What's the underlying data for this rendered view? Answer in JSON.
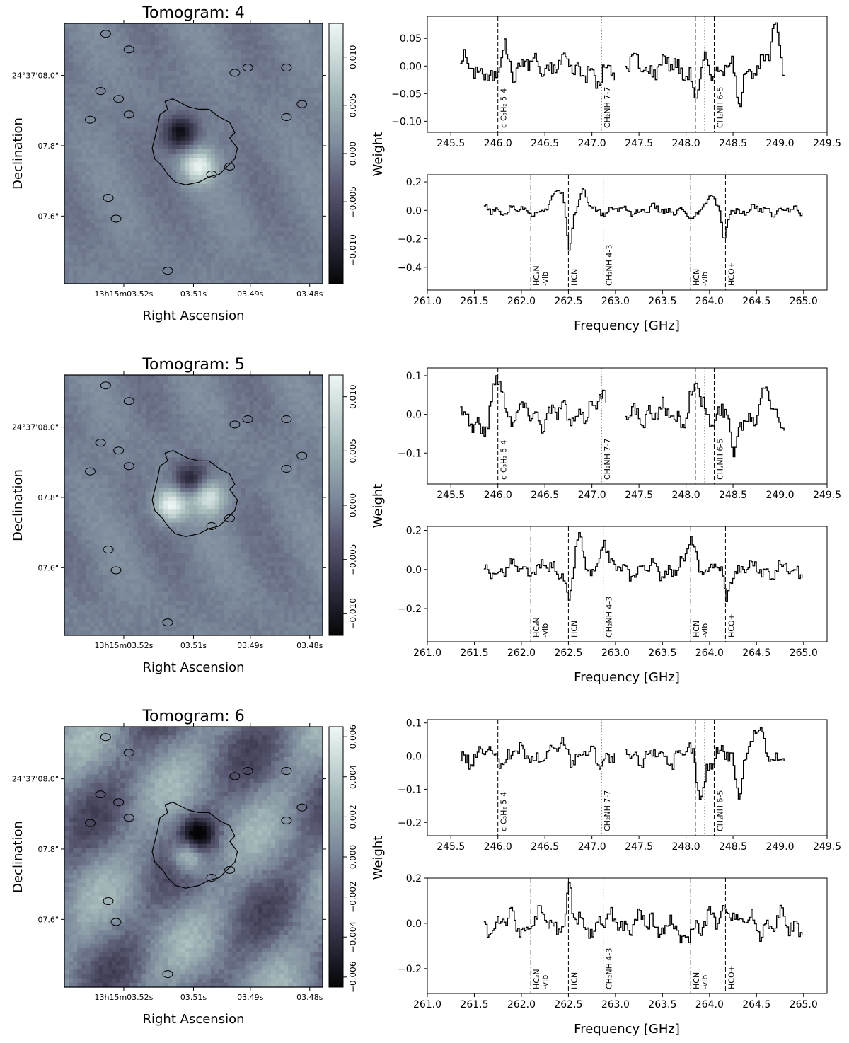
{
  "figure": {
    "ylabel_spectra": "Weight",
    "xlabel_spectra": "Frequency [GHz]",
    "xlabel_map": "Right Ascension",
    "ylabel_map": "Declination",
    "ra_ticks": [
      "13h15m03.52s",
      "03.51s",
      "03.49s",
      "03.48s"
    ],
    "dec_ticks": [
      "24°37'08.0\"",
      "07.8\"",
      "07.6\""
    ]
  },
  "chart_data": [
    {
      "type": "heatmap",
      "title": "Tomogram: 4",
      "colorbar_ticks": [
        "0.010",
        "0.005",
        "0.000",
        "−0.005",
        "−0.010"
      ],
      "colorbar_values": [
        0.01,
        0.005,
        0.0,
        -0.005,
        -0.01
      ],
      "vrange": [
        -0.0135,
        0.0135
      ],
      "features": [
        {
          "kind": "negative",
          "label": "dark blob",
          "ra": 0.45,
          "dec": 0.42,
          "peak": -0.013
        },
        {
          "kind": "positive",
          "label": "bright blob",
          "ra": 0.52,
          "dec": 0.55,
          "peak": 0.012
        }
      ],
      "spectra": [
        {
          "type": "line",
          "xlim": [
            245.25,
            249.5
          ],
          "ylim": [
            -0.12,
            0.09
          ],
          "xticks": [
            245.5,
            246.0,
            246.5,
            247.0,
            247.5,
            248.0,
            248.5,
            249.0,
            249.5
          ],
          "xtick_labels": [
            "245.5",
            "246.0",
            "246.5",
            "247.0",
            "247.5",
            "248.0",
            "248.5",
            "249.0",
            "249.5"
          ],
          "yticks": [
            0.05,
            0.0,
            -0.05,
            -0.1
          ],
          "ytick_labels": [
            "0.05",
            "0.00",
            "−0.05",
            "−0.10"
          ],
          "segments": [
            [
              245.6,
              247.25
            ],
            [
              247.35,
              249.05
            ]
          ],
          "noise": 0.02,
          "features": [
            {
              "x": 245.95,
              "a": -0.04,
              "w": 0.05
            },
            {
              "x": 246.05,
              "a": 0.04,
              "w": 0.04
            },
            {
              "x": 247.05,
              "a": -0.04,
              "w": 0.05
            },
            {
              "x": 248.1,
              "a": -0.06,
              "w": 0.04
            },
            {
              "x": 248.55,
              "a": -0.08,
              "w": 0.03
            },
            {
              "x": 248.95,
              "a": 0.07,
              "w": 0.04
            }
          ],
          "lines": [
            {
              "x": 246.0,
              "style": "dashed",
              "label": "c-C₃H₂ 5-4"
            },
            {
              "x": 247.1,
              "style": "dotted",
              "label": "CH₂NH 7-7"
            },
            {
              "x": 248.1,
              "style": "dashed",
              "label": ""
            },
            {
              "x": 248.2,
              "style": "dotted",
              "label": ""
            },
            {
              "x": 248.3,
              "style": "dashed",
              "label": "CH₂NH 6-5"
            }
          ]
        },
        {
          "type": "line",
          "xlim": [
            261.0,
            265.25
          ],
          "ylim": [
            -0.56,
            0.25
          ],
          "xticks": [
            261.0,
            261.5,
            262.0,
            262.5,
            263.0,
            263.5,
            264.0,
            264.5,
            265.0
          ],
          "xtick_labels": [
            "261.0",
            "261.5",
            "262.0",
            "262.5",
            "263.0",
            "263.5",
            "264.0",
            "264.5",
            "265.0"
          ],
          "yticks": [
            0.2,
            0.0,
            -0.2,
            -0.4
          ],
          "ytick_labels": [
            "0.2",
            "0.0",
            "−0.2",
            "−0.4"
          ],
          "segments": [
            [
              261.6,
              265.0
            ]
          ],
          "noise": 0.03,
          "features": [
            {
              "x": 262.4,
              "a": 0.15,
              "w": 0.06
            },
            {
              "x": 262.5,
              "a": -0.3,
              "w": 0.025
            },
            {
              "x": 262.65,
              "a": 0.12,
              "w": 0.04
            },
            {
              "x": 264.0,
              "a": 0.1,
              "w": 0.06
            },
            {
              "x": 264.15,
              "a": -0.25,
              "w": 0.025
            },
            {
              "x": 263.8,
              "a": -0.08,
              "w": 0.05
            }
          ],
          "lines": [
            {
              "x": 262.1,
              "style": "dashdot",
              "label": "HC₃N\n-vib"
            },
            {
              "x": 262.5,
              "style": "dashed",
              "label": "HCN"
            },
            {
              "x": 262.87,
              "style": "dotted",
              "label": "CH₂NH 4-3"
            },
            {
              "x": 263.8,
              "style": "dashdot",
              "label": "HCN\n-vib"
            },
            {
              "x": 264.17,
              "style": "dashed",
              "label": "HCO+"
            }
          ]
        }
      ]
    },
    {
      "type": "heatmap",
      "title": "Tomogram: 5",
      "colorbar_ticks": [
        "0.010",
        "0.005",
        "0.000",
        "−0.005",
        "−0.010"
      ],
      "colorbar_values": [
        0.01,
        0.005,
        0.0,
        -0.005,
        -0.01
      ],
      "vrange": [
        -0.012,
        0.012
      ],
      "features": [
        {
          "kind": "positive",
          "label": "bright blob left",
          "ra": 0.41,
          "dec": 0.5,
          "peak": 0.012
        },
        {
          "kind": "positive",
          "label": "bright blob right",
          "ra": 0.56,
          "dec": 0.47,
          "peak": 0.01
        },
        {
          "kind": "negative",
          "label": "dark blob",
          "ra": 0.49,
          "dec": 0.4,
          "peak": -0.009
        }
      ],
      "spectra": [
        {
          "type": "line",
          "xlim": [
            245.25,
            249.5
          ],
          "ylim": [
            -0.18,
            0.12
          ],
          "xticks": [
            245.5,
            246.0,
            246.5,
            247.0,
            247.5,
            248.0,
            248.5,
            249.0,
            249.5
          ],
          "xtick_labels": [
            "245.5",
            "246.0",
            "246.5",
            "247.0",
            "247.5",
            "248.0",
            "248.5",
            "249.0",
            "249.5"
          ],
          "yticks": [
            0.1,
            0.0,
            -0.1
          ],
          "ytick_labels": [
            "0.1",
            "0.0",
            "−0.1"
          ],
          "segments": [
            [
              245.6,
              247.15
            ],
            [
              247.35,
              249.05
            ]
          ],
          "noise": 0.03,
          "features": [
            {
              "x": 246.0,
              "a": 0.1,
              "w": 0.05
            },
            {
              "x": 245.85,
              "a": -0.05,
              "w": 0.05
            },
            {
              "x": 247.1,
              "a": 0.06,
              "w": 0.04
            },
            {
              "x": 248.1,
              "a": 0.06,
              "w": 0.05
            },
            {
              "x": 248.5,
              "a": -0.12,
              "w": 0.03
            },
            {
              "x": 248.85,
              "a": 0.07,
              "w": 0.04
            }
          ],
          "lines": [
            {
              "x": 246.0,
              "style": "dashed",
              "label": "c-C₃H₂ 5-4"
            },
            {
              "x": 247.1,
              "style": "dotted",
              "label": "CH₂NH 7-7"
            },
            {
              "x": 248.1,
              "style": "dashed",
              "label": ""
            },
            {
              "x": 248.2,
              "style": "dotted",
              "label": ""
            },
            {
              "x": 248.3,
              "style": "dashed",
              "label": "CH₂NH 6-5"
            }
          ]
        },
        {
          "type": "line",
          "xlim": [
            261.0,
            265.25
          ],
          "ylim": [
            -0.37,
            0.22
          ],
          "xticks": [
            261.0,
            261.5,
            262.0,
            262.5,
            263.0,
            263.5,
            264.0,
            264.5,
            265.0
          ],
          "xtick_labels": [
            "261.0",
            "261.5",
            "262.0",
            "262.5",
            "263.0",
            "263.5",
            "264.0",
            "264.5",
            "265.0"
          ],
          "yticks": [
            0.2,
            0.0,
            -0.2
          ],
          "ytick_labels": [
            "0.2",
            "0.0",
            "−0.2"
          ],
          "segments": [
            [
              261.6,
              265.0
            ]
          ],
          "noise": 0.04,
          "features": [
            {
              "x": 262.5,
              "a": -0.18,
              "w": 0.025
            },
            {
              "x": 262.6,
              "a": 0.16,
              "w": 0.03
            },
            {
              "x": 262.87,
              "a": 0.17,
              "w": 0.03
            },
            {
              "x": 263.8,
              "a": 0.16,
              "w": 0.04
            },
            {
              "x": 264.17,
              "a": -0.15,
              "w": 0.025
            }
          ],
          "lines": [
            {
              "x": 262.1,
              "style": "dashdot",
              "label": "HC₃N\n-vib"
            },
            {
              "x": 262.5,
              "style": "dashed",
              "label": "HCN"
            },
            {
              "x": 262.87,
              "style": "dotted",
              "label": "CH₂NH 4-3"
            },
            {
              "x": 263.8,
              "style": "dashdot",
              "label": "HCN\n-vib"
            },
            {
              "x": 264.17,
              "style": "dashed",
              "label": "HCO+"
            }
          ]
        }
      ]
    },
    {
      "type": "heatmap",
      "title": "Tomogram: 6",
      "colorbar_ticks": [
        "0.006",
        "0.004",
        "0.002",
        "0.000",
        "−0.002",
        "−0.004",
        "−0.006"
      ],
      "colorbar_values": [
        0.006,
        0.004,
        0.002,
        0.0,
        -0.002,
        -0.004,
        -0.006
      ],
      "vrange": [
        -0.0065,
        0.0065
      ],
      "features": [
        {
          "kind": "negative",
          "label": "dark blob",
          "ra": 0.52,
          "dec": 0.41,
          "peak": -0.0065
        },
        {
          "kind": "positive",
          "label": "bright blob",
          "ra": 0.48,
          "dec": 0.5,
          "peak": 0.006
        }
      ],
      "spectra": [
        {
          "type": "line",
          "xlim": [
            245.25,
            249.5
          ],
          "ylim": [
            -0.24,
            0.11
          ],
          "xticks": [
            245.5,
            246.0,
            246.5,
            247.0,
            247.5,
            248.0,
            248.5,
            249.0,
            249.5
          ],
          "xtick_labels": [
            "245.5",
            "246.0",
            "246.5",
            "247.0",
            "247.5",
            "248.0",
            "248.5",
            "249.0",
            "249.5"
          ],
          "yticks": [
            0.1,
            0.0,
            -0.1,
            -0.2
          ],
          "ytick_labels": [
            "0.1",
            "0.0",
            "−0.1",
            "−0.2"
          ],
          "segments": [
            [
              245.6,
              247.25
            ],
            [
              247.35,
              249.05
            ]
          ],
          "noise": 0.03,
          "features": [
            {
              "x": 248.15,
              "a": -0.12,
              "w": 0.04
            },
            {
              "x": 248.55,
              "a": -0.1,
              "w": 0.03
            },
            {
              "x": 248.75,
              "a": 0.07,
              "w": 0.06
            },
            {
              "x": 246.7,
              "a": 0.04,
              "w": 0.05
            }
          ],
          "lines": [
            {
              "x": 246.0,
              "style": "dashed",
              "label": "c-C₃H₂ 5-4"
            },
            {
              "x": 247.1,
              "style": "dotted",
              "label": "CH₂NH 7-7"
            },
            {
              "x": 248.1,
              "style": "dashed",
              "label": ""
            },
            {
              "x": 248.2,
              "style": "dotted",
              "label": ""
            },
            {
              "x": 248.3,
              "style": "dashed",
              "label": "CH₂NH 6-5"
            }
          ]
        },
        {
          "type": "line",
          "xlim": [
            261.0,
            265.25
          ],
          "ylim": [
            -0.31,
            0.2
          ],
          "xticks": [
            261.0,
            261.5,
            262.0,
            262.5,
            263.0,
            263.5,
            264.0,
            264.5,
            265.0
          ],
          "xtick_labels": [
            "261.0",
            "261.5",
            "262.0",
            "262.5",
            "263.0",
            "263.5",
            "264.0",
            "264.5",
            "265.0"
          ],
          "yticks": [
            0.2,
            0.0,
            -0.2
          ],
          "ytick_labels": [
            "0.2",
            "0.0",
            "−0.2"
          ],
          "segments": [
            [
              261.6,
              265.0
            ]
          ],
          "noise": 0.05,
          "features": [
            {
              "x": 262.5,
              "a": 0.14,
              "w": 0.025
            },
            {
              "x": 263.7,
              "a": -0.12,
              "w": 0.04
            },
            {
              "x": 264.2,
              "a": 0.1,
              "w": 0.05
            }
          ],
          "lines": [
            {
              "x": 262.1,
              "style": "dashdot",
              "label": "HC₃N\n-vib"
            },
            {
              "x": 262.5,
              "style": "dashed",
              "label": "HCN"
            },
            {
              "x": 262.87,
              "style": "dotted",
              "label": "CH₂NH 4-3"
            },
            {
              "x": 263.8,
              "style": "dashdot",
              "label": "HCN\n-vib"
            },
            {
              "x": 264.17,
              "style": "dashed",
              "label": "HCO+"
            }
          ]
        }
      ]
    }
  ]
}
